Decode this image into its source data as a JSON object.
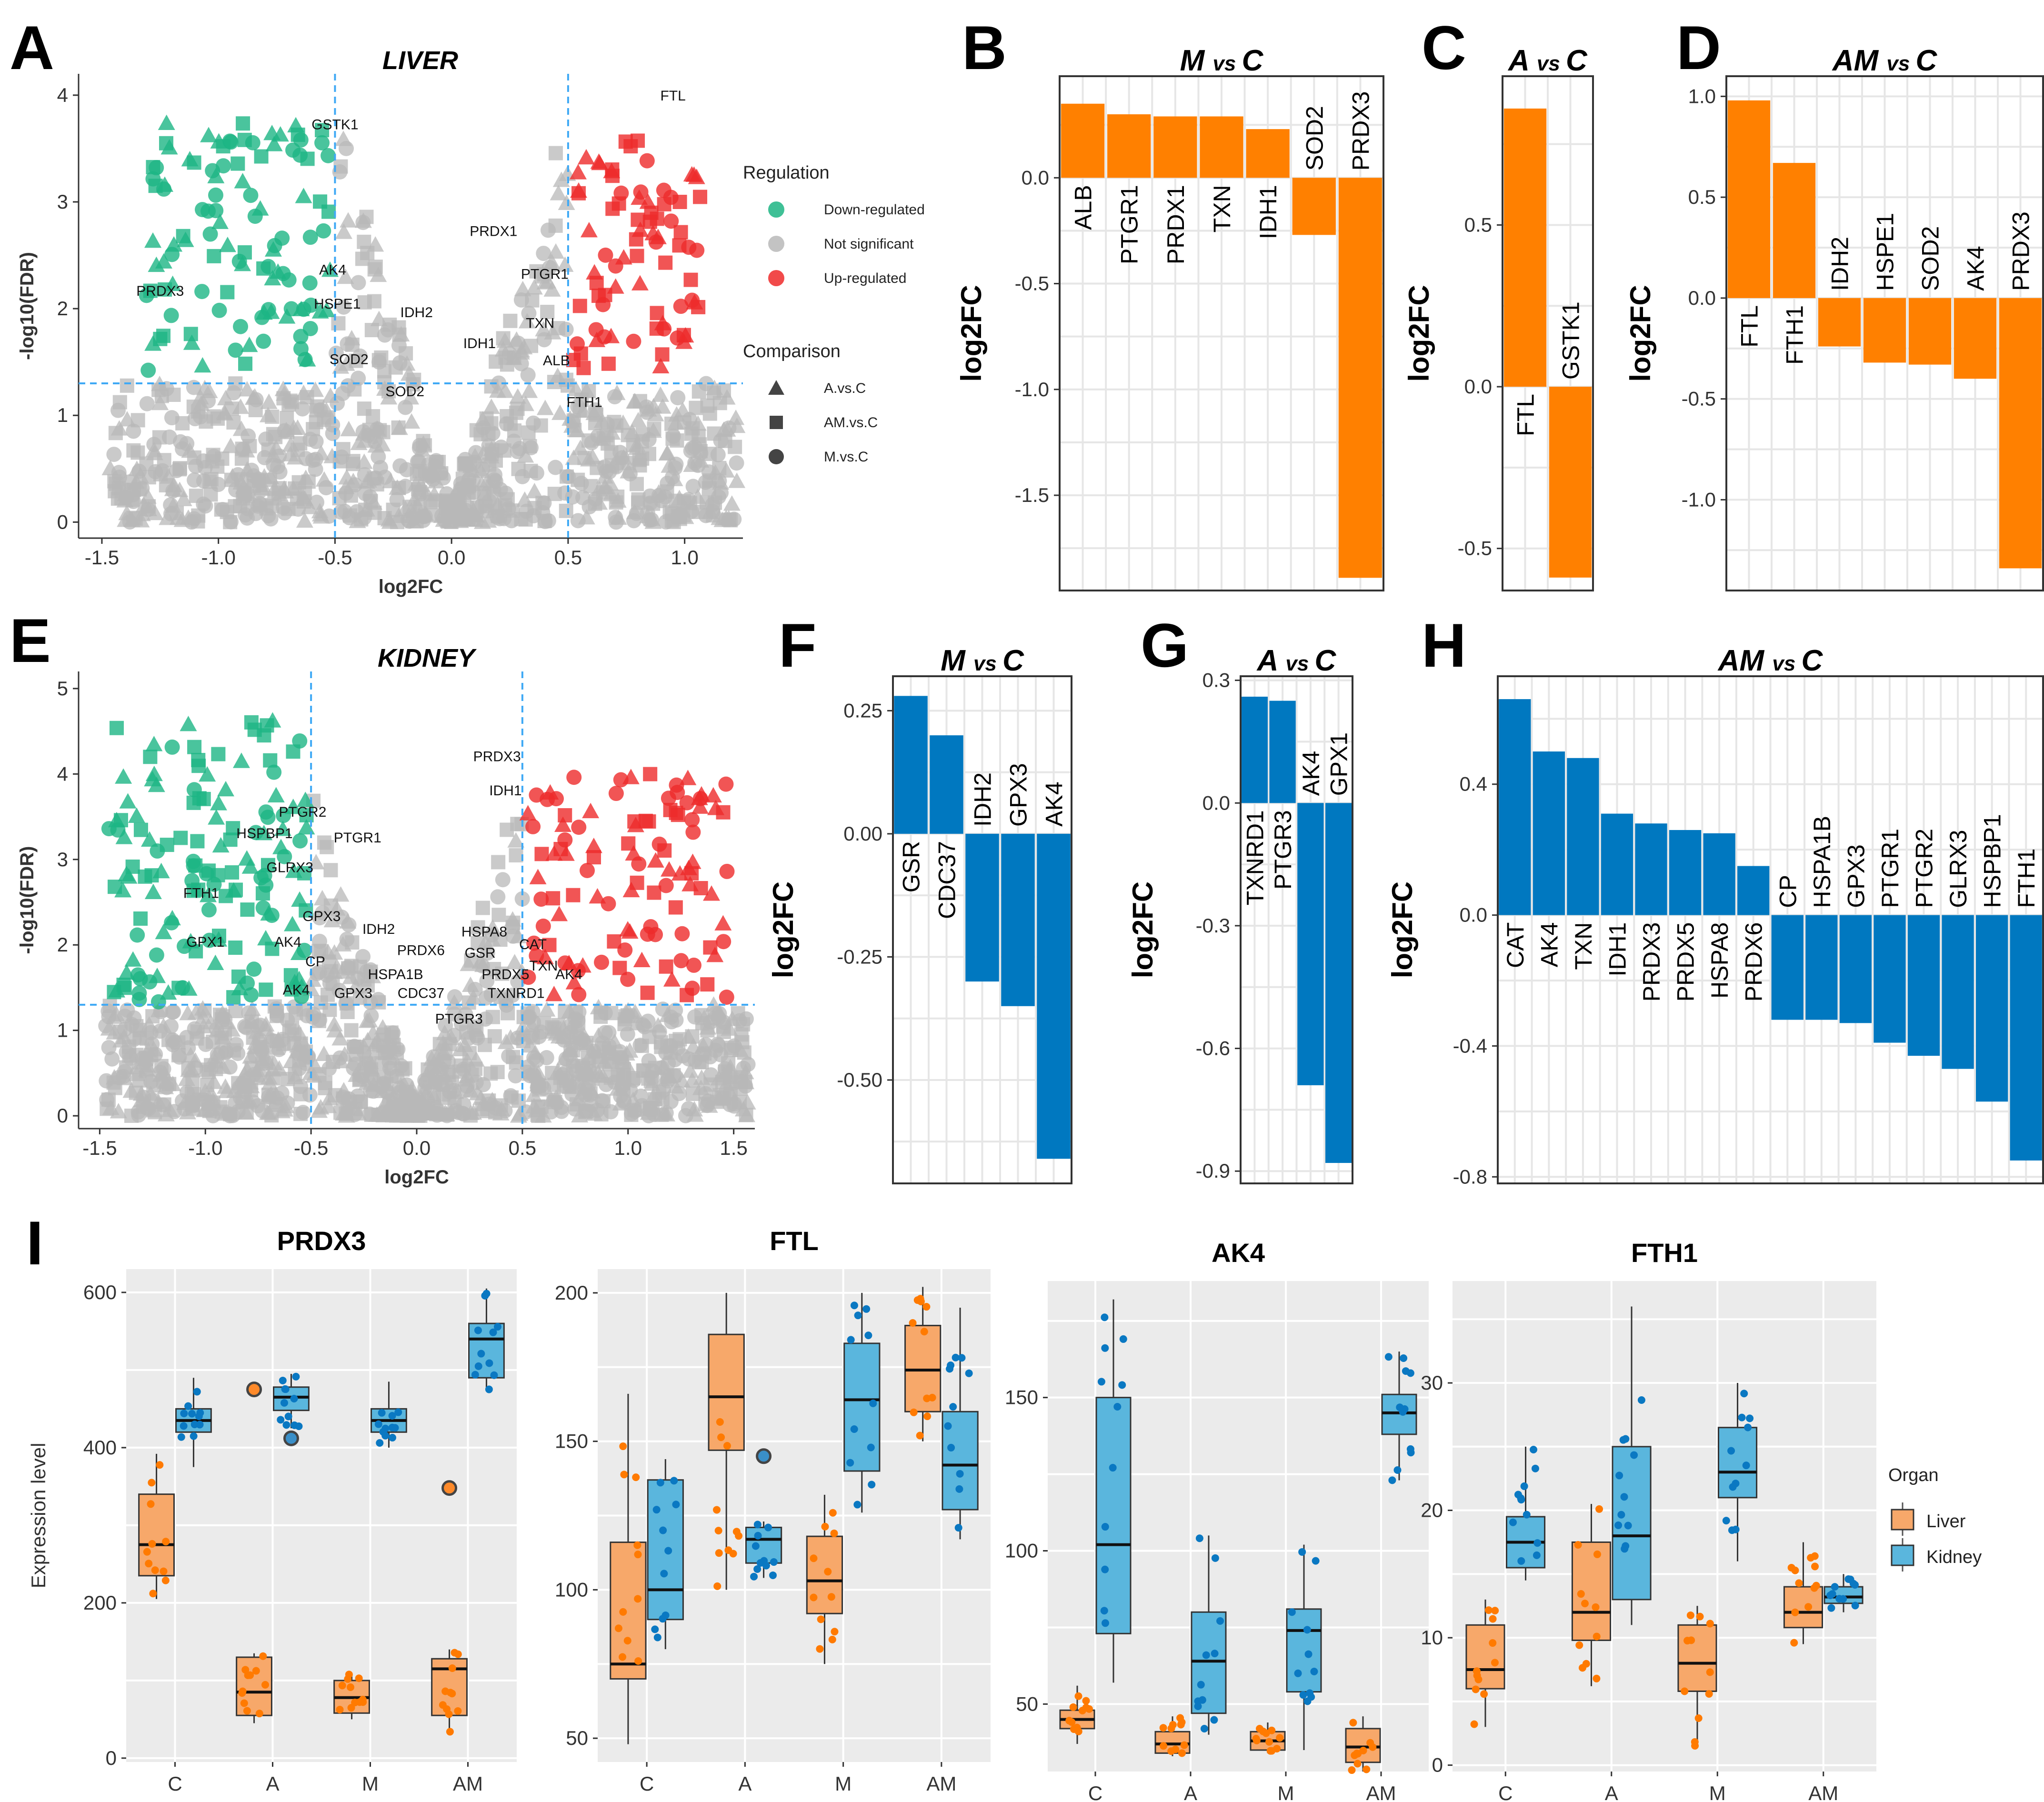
{
  "chart_data": [
    {
      "panel": "A",
      "type": "scatter",
      "title": "LIVER",
      "xlabel": "log2FC",
      "ylabel": "-log10(FDR)",
      "xlim": [
        -1.6,
        1.25
      ],
      "ylim": [
        -0.15,
        4.2
      ],
      "xticks": [
        -1.5,
        -1.0,
        -0.5,
        0.0,
        0.5,
        1.0
      ],
      "xtick_labels": [
        "-1.5",
        "-1.0",
        "-0.5",
        "0.0",
        "0.5",
        "1.0"
      ],
      "yticks": [
        0,
        1,
        2,
        3,
        4
      ],
      "thresholds": {
        "x": [
          -0.5,
          0.5
        ],
        "y": 1.3
      },
      "gene_labels": [
        {
          "gene": "FTL",
          "x": 0.95,
          "y": 3.95
        },
        {
          "gene": "GSTK1",
          "x": -0.5,
          "y": 3.68
        },
        {
          "gene": "PRDX1",
          "x": 0.18,
          "y": 2.68
        },
        {
          "gene": "PTGR1",
          "x": 0.4,
          "y": 2.28
        },
        {
          "gene": "AK4",
          "x": -0.51,
          "y": 2.32
        },
        {
          "gene": "PRDX3",
          "x": -1.25,
          "y": 2.12
        },
        {
          "gene": "HSPE1",
          "x": -0.49,
          "y": 2.0
        },
        {
          "gene": "IDH2",
          "x": -0.15,
          "y": 1.92
        },
        {
          "gene": "TXN",
          "x": 0.38,
          "y": 1.82
        },
        {
          "gene": "IDH1",
          "x": 0.12,
          "y": 1.63
        },
        {
          "gene": "ALB",
          "x": 0.45,
          "y": 1.47
        },
        {
          "gene": "SOD2",
          "x": -0.44,
          "y": 1.48
        },
        {
          "gene": "SOD2",
          "x": -0.2,
          "y": 1.18
        },
        {
          "gene": "FTH1",
          "x": 0.57,
          "y": 1.08
        }
      ],
      "legend": {
        "regulation_title": "Regulation",
        "regulation": [
          "Down-regulated",
          "Not significant",
          "Up-regulated"
        ],
        "comparison_title": "Comparison",
        "comparison": [
          "A.vs.C",
          "AM.vs.C",
          "M.vs.C"
        ]
      }
    },
    {
      "panel": "E",
      "type": "scatter",
      "title": "KIDNEY",
      "xlabel": "log2FC",
      "ylabel": "-log10(FDR)",
      "xlim": [
        -1.6,
        1.6
      ],
      "ylim": [
        -0.15,
        5.2
      ],
      "xticks": [
        -1.5,
        -1.0,
        -0.5,
        0.0,
        0.5,
        1.0,
        1.5
      ],
      "xtick_labels": [
        "-1.5",
        "-1.0",
        "-0.5",
        "0.0",
        "0.5",
        "1.0",
        "1.5"
      ],
      "yticks": [
        0,
        1,
        2,
        3,
        4,
        5
      ],
      "thresholds": {
        "x": [
          -0.5,
          0.5
        ],
        "y": 1.3
      },
      "gene_labels": [
        {
          "gene": "PRDX3",
          "x": 0.38,
          "y": 4.15
        },
        {
          "gene": "IDH1",
          "x": 0.42,
          "y": 3.75
        },
        {
          "gene": "PTGR2",
          "x": -0.54,
          "y": 3.5
        },
        {
          "gene": "HSPBP1",
          "x": -0.72,
          "y": 3.25
        },
        {
          "gene": "PTGR1",
          "x": -0.28,
          "y": 3.2
        },
        {
          "gene": "GLRX3",
          "x": -0.6,
          "y": 2.85
        },
        {
          "gene": "FTH1",
          "x": -1.02,
          "y": 2.55
        },
        {
          "gene": "GPX3",
          "x": -0.45,
          "y": 2.28
        },
        {
          "gene": "HSPA8",
          "x": 0.32,
          "y": 2.1
        },
        {
          "gene": "CAT",
          "x": 0.55,
          "y": 1.95
        },
        {
          "gene": "IDH2",
          "x": -0.18,
          "y": 2.13
        },
        {
          "gene": "GSR",
          "x": 0.3,
          "y": 1.85
        },
        {
          "gene": "GPX1",
          "x": -1.0,
          "y": 1.98
        },
        {
          "gene": "AK4",
          "x": -0.61,
          "y": 1.98
        },
        {
          "gene": "TXN",
          "x": 0.6,
          "y": 1.7
        },
        {
          "gene": "PRDX6",
          "x": 0.02,
          "y": 1.88
        },
        {
          "gene": "CP",
          "x": -0.48,
          "y": 1.75
        },
        {
          "gene": "HSPA1B",
          "x": -0.1,
          "y": 1.6
        },
        {
          "gene": "PRDX5",
          "x": 0.42,
          "y": 1.6
        },
        {
          "gene": "AK4",
          "x": 0.72,
          "y": 1.6
        },
        {
          "gene": "AK4",
          "x": -0.57,
          "y": 1.42
        },
        {
          "gene": "GPX3",
          "x": -0.3,
          "y": 1.38
        },
        {
          "gene": "CDC37",
          "x": 0.02,
          "y": 1.38
        },
        {
          "gene": "TXNRD1",
          "x": 0.47,
          "y": 1.38
        },
        {
          "gene": "PTGR3",
          "x": 0.2,
          "y": 1.08
        }
      ]
    },
    {
      "panel": "B",
      "type": "bar",
      "title": "M vs C",
      "color": "#ff8000",
      "ylabel": "log2FC",
      "ylim": [
        -1.95,
        0.48
      ],
      "yticks": [
        0.0,
        -0.5,
        -1.0,
        -1.5
      ],
      "ytick_labels": [
        "0.0",
        "-0.5",
        "-1.0",
        "-1.5"
      ],
      "categories": [
        "ALB",
        "PTGR1",
        "PRDX1",
        "TXN",
        "IDH1",
        "SOD2",
        "PRDX3"
      ],
      "values": [
        0.35,
        0.3,
        0.29,
        0.29,
        0.23,
        -0.27,
        -1.89
      ]
    },
    {
      "panel": "C",
      "type": "bar",
      "title": "A vs C",
      "color": "#ff8000",
      "ylabel": "log2FC",
      "ylim": [
        -0.63,
        0.96
      ],
      "yticks": [
        0.5,
        0.0,
        -0.5
      ],
      "ytick_labels": [
        "0.5",
        "0.0",
        "-0.5"
      ],
      "categories": [
        "FTL",
        "GSTK1"
      ],
      "values": [
        0.86,
        -0.59
      ]
    },
    {
      "panel": "D",
      "type": "bar",
      "title": "AM vs C",
      "color": "#ff8000",
      "ylabel": "log2FC",
      "ylim": [
        -1.45,
        1.1
      ],
      "yticks": [
        1.0,
        0.5,
        0.0,
        -0.5,
        -1.0
      ],
      "ytick_labels": [
        "1.0",
        "0.5",
        "0.0",
        "-0.5",
        "-1.0"
      ],
      "categories": [
        "FTL",
        "FTH1",
        "IDH2",
        "HSPE1",
        "SOD2",
        "AK4",
        "PRDX3"
      ],
      "values": [
        0.98,
        0.67,
        -0.24,
        -0.32,
        -0.33,
        -0.4,
        -1.34
      ]
    },
    {
      "panel": "F",
      "type": "bar",
      "title": "M vs C",
      "color": "#0078c0",
      "ylabel": "log2FC",
      "ylim": [
        -0.71,
        0.32
      ],
      "yticks": [
        0.25,
        0.0,
        -0.25,
        -0.5
      ],
      "ytick_labels": [
        "0.25",
        "0.00",
        "-0.25",
        "-0.50"
      ],
      "categories": [
        "GSR",
        "CDC37",
        "IDH2",
        "GPX3",
        "AK4"
      ],
      "values": [
        0.28,
        0.2,
        -0.3,
        -0.35,
        -0.66
      ]
    },
    {
      "panel": "G",
      "type": "bar",
      "title": "A vs C",
      "color": "#0078c0",
      "ylabel": "log2FC",
      "ylim": [
        -0.93,
        0.31
      ],
      "yticks": [
        0.3,
        0.0,
        -0.3,
        -0.6,
        -0.9
      ],
      "ytick_labels": [
        "0.3",
        "0.0",
        "-0.3",
        "-0.6",
        "-0.9"
      ],
      "categories": [
        "TXNRD1",
        "PTGR3",
        "AK4",
        "GPX1"
      ],
      "values": [
        0.26,
        0.25,
        -0.69,
        -0.88
      ]
    },
    {
      "panel": "H",
      "type": "bar",
      "title": "AM vs C",
      "color": "#0078c0",
      "ylabel": "log2FC",
      "ylim": [
        -0.82,
        0.73
      ],
      "yticks": [
        0.4,
        0.0,
        -0.4,
        -0.8
      ],
      "ytick_labels": [
        "0.4",
        "0.0",
        "-0.4",
        "-0.8"
      ],
      "categories": [
        "CAT",
        "AK4",
        "TXN",
        "IDH1",
        "PRDX3",
        "PRDX5",
        "HSPA8",
        "PRDX6",
        "CP",
        "HSPA1B",
        "GPX3",
        "PTGR1",
        "PTGR2",
        "GLRX3",
        "HSPBP1",
        "FTH1"
      ],
      "values": [
        0.66,
        0.5,
        0.48,
        0.31,
        0.28,
        0.26,
        0.25,
        0.15,
        -0.32,
        -0.32,
        -0.33,
        -0.39,
        -0.43,
        -0.47,
        -0.57,
        -0.75
      ]
    },
    {
      "panel": "I",
      "type": "box",
      "title": "PRDX3",
      "ylabel": "Expression level",
      "ylim": [
        -5,
        630
      ],
      "yticks": [
        0,
        200,
        400,
        600
      ],
      "categories": [
        "C",
        "A",
        "M",
        "AM"
      ],
      "liver": [
        {
          "q1": 235,
          "median": 275,
          "q3": 340,
          "lo": 205,
          "hi": 392
        },
        {
          "q1": 55,
          "median": 85,
          "q3": 130,
          "lo": 45,
          "hi": 135
        },
        {
          "q1": 58,
          "median": 78,
          "q3": 100,
          "lo": 50,
          "hi": 108
        },
        {
          "q1": 55,
          "median": 115,
          "q3": 128,
          "lo": 30,
          "hi": 140
        }
      ],
      "kidney": [
        {
          "q1": 420,
          "median": 435,
          "q3": 450,
          "lo": 375,
          "hi": 490
        },
        {
          "q1": 448,
          "median": 465,
          "q3": 478,
          "lo": 425,
          "hi": 495
        },
        {
          "q1": 420,
          "median": 435,
          "q3": 450,
          "lo": 400,
          "hi": 485
        },
        {
          "q1": 490,
          "median": 540,
          "q3": 560,
          "lo": 475,
          "hi": 605
        }
      ],
      "outliers": [
        {
          "group": "A",
          "organ": "liver",
          "value": 475
        },
        {
          "group": "A",
          "organ": "kidney",
          "value": 412
        },
        {
          "group": "AM",
          "organ": "liver",
          "value": 348
        }
      ]
    },
    {
      "panel": "I",
      "type": "box",
      "title": "FTL",
      "ylim": [
        42,
        208
      ],
      "yticks": [
        50,
        100,
        150,
        200
      ],
      "categories": [
        "C",
        "A",
        "M",
        "AM"
      ],
      "liver": [
        {
          "q1": 70,
          "median": 75,
          "q3": 116,
          "lo": 48,
          "hi": 166
        },
        {
          "q1": 147,
          "median": 165,
          "q3": 186,
          "lo": 100,
          "hi": 200
        },
        {
          "q1": 92,
          "median": 103,
          "q3": 118,
          "lo": 75,
          "hi": 132
        },
        {
          "q1": 160,
          "median": 174,
          "q3": 189,
          "lo": 150,
          "hi": 202
        }
      ],
      "kidney": [
        {
          "q1": 90,
          "median": 100,
          "q3": 137,
          "lo": 80,
          "hi": 144
        },
        {
          "q1": 109,
          "median": 117,
          "q3": 121,
          "lo": 104,
          "hi": 123
        },
        {
          "q1": 140,
          "median": 164,
          "q3": 183,
          "lo": 126,
          "hi": 200
        },
        {
          "q1": 127,
          "median": 142,
          "q3": 160,
          "lo": 117,
          "hi": 195
        }
      ],
      "outliers": [
        {
          "group": "A",
          "organ": "kidney",
          "value": 145
        }
      ]
    },
    {
      "panel": "I",
      "type": "box",
      "title": "AK4",
      "ylim": [
        28,
        188
      ],
      "yticks": [
        50,
        100,
        150
      ],
      "categories": [
        "C",
        "A",
        "M",
        "AM"
      ],
      "liver": [
        {
          "q1": 42,
          "median": 45,
          "q3": 48,
          "lo": 37,
          "hi": 56
        },
        {
          "q1": 34,
          "median": 37,
          "q3": 41,
          "lo": 33,
          "hi": 46
        },
        {
          "q1": 35,
          "median": 38,
          "q3": 41,
          "lo": 34,
          "hi": 44
        },
        {
          "q1": 31,
          "median": 36,
          "q3": 42,
          "lo": 28,
          "hi": 46
        }
      ],
      "kidney": [
        {
          "q1": 73,
          "median": 102,
          "q3": 150,
          "lo": 57,
          "hi": 182
        },
        {
          "q1": 47,
          "median": 64,
          "q3": 80,
          "lo": 40,
          "hi": 105
        },
        {
          "q1": 54,
          "median": 74,
          "q3": 81,
          "lo": 35,
          "hi": 102
        },
        {
          "q1": 138,
          "median": 145,
          "q3": 151,
          "lo": 123,
          "hi": 165
        }
      ],
      "outliers": []
    },
    {
      "panel": "I",
      "type": "box",
      "title": "FTH1",
      "ylim": [
        -0.5,
        38
      ],
      "yticks": [
        0,
        10,
        20,
        30
      ],
      "categories": [
        "C",
        "A",
        "M",
        "AM"
      ],
      "liver": [
        {
          "q1": 6,
          "median": 7.5,
          "q3": 11,
          "lo": 3,
          "hi": 13
        },
        {
          "q1": 9.8,
          "median": 12,
          "q3": 17.5,
          "lo": 6.2,
          "hi": 20.5
        },
        {
          "q1": 5.8,
          "median": 8,
          "q3": 11,
          "lo": 1.5,
          "hi": 12.5
        },
        {
          "q1": 10.8,
          "median": 12,
          "q3": 14,
          "lo": 9.5,
          "hi": 17.5
        }
      ],
      "kidney": [
        {
          "q1": 15.5,
          "median": 17.5,
          "q3": 19.5,
          "lo": 14.5,
          "hi": 25
        },
        {
          "q1": 13,
          "median": 18,
          "q3": 25,
          "lo": 11,
          "hi": 36
        },
        {
          "q1": 21,
          "median": 23,
          "q3": 26.5,
          "lo": 16,
          "hi": 30
        },
        {
          "q1": 12.7,
          "median": 13.2,
          "q3": 14,
          "lo": 12,
          "hi": 15
        }
      ],
      "outliers": []
    }
  ],
  "panel_letters": [
    "A",
    "B",
    "C",
    "D",
    "E",
    "F",
    "G",
    "H",
    "I"
  ],
  "legend_I": {
    "title": "Organ",
    "items": [
      "Liver",
      "Kidney"
    ]
  },
  "colors": {
    "liver_orange": "#ff8000",
    "kidney_blue": "#0078c0",
    "down": "#1db584",
    "up": "#ee2a2a",
    "ns": "#b8b8b8",
    "box_liver": "#f7a86a",
    "box_kidney": "#5ab6dd"
  }
}
